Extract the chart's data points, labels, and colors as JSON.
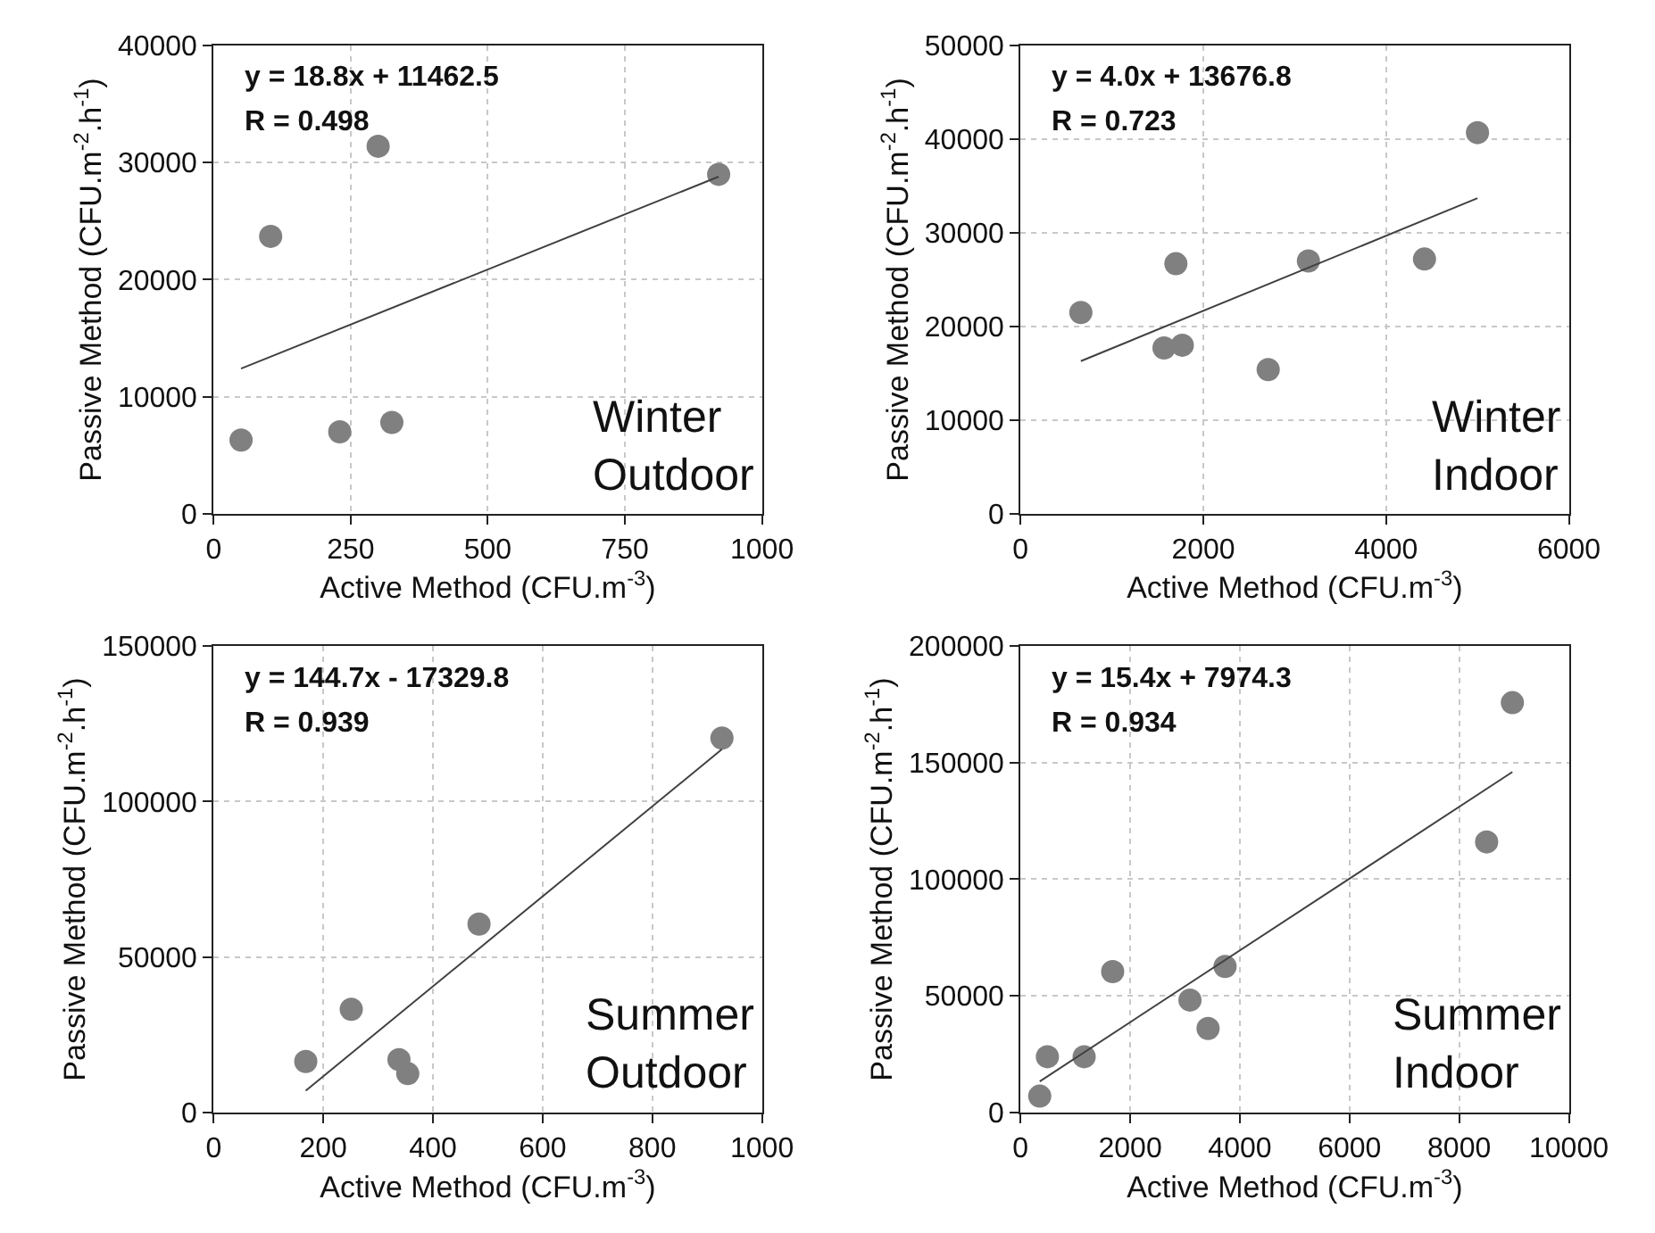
{
  "chart_data": [
    {
      "type": "scatter",
      "xlabel": "Active Method (CFU.m$^{-3}$)",
      "ylabel": "Passive Method (CFU.m$^{-2}$.h$^{-1}$)",
      "xlim": [
        0,
        1000
      ],
      "xticks": [
        0,
        250,
        500,
        750,
        1000
      ],
      "ylim": [
        0,
        40000
      ],
      "yticks": [
        0,
        10000,
        20000,
        30000,
        40000
      ],
      "grid": true,
      "annotations": [
        "y = 18.8x + 11462.5",
        "R = 0.498",
        "Winter\nOutdoor"
      ],
      "series": [
        {
          "marker": "circle",
          "color": "#808080",
          "x": [
            50,
            104,
            300,
            230,
            325,
            921
          ],
          "values": [
            6300,
            23700,
            31400,
            7000,
            7800,
            29000
          ]
        },
        {
          "type": "line",
          "marker": "none",
          "color": "#404040",
          "x": [
            50,
            921
          ],
          "values": [
            12400,
            28800
          ]
        }
      ]
    },
    {
      "type": "scatter",
      "xlabel": "Active Method (CFU.m$^{-3}$)",
      "ylabel": "Passive Method (CFU.m$^{-2}$.h$^{-1}$)",
      "xlim": [
        0,
        6000
      ],
      "xticks": [
        0,
        2000,
        4000,
        6000
      ],
      "ylim": [
        0,
        50000
      ],
      "yticks": [
        0,
        10000,
        20000,
        30000,
        40000,
        50000
      ],
      "grid": true,
      "annotations": [
        "y = 4.0x + 13676.8",
        "R = 0.723",
        "Winter\nIndoor"
      ],
      "series": [
        {
          "marker": "circle",
          "color": "#808080",
          "x": [
            660,
            1700,
            1570,
            1770,
            2710,
            3150,
            4420,
            5000
          ],
          "values": [
            21500,
            26700,
            17700,
            18000,
            15400,
            27000,
            27200,
            40700
          ]
        },
        {
          "type": "line",
          "marker": "none",
          "color": "#404040",
          "x": [
            660,
            5000
          ],
          "values": [
            16300,
            33700
          ]
        }
      ]
    },
    {
      "type": "scatter",
      "xlabel": "Active Method (CFU.m$^{-3}$)",
      "ylabel": "Passive Method (CFU.m$^{-2}$.h$^{-1}$)",
      "xlim": [
        0,
        1000
      ],
      "xticks": [
        0,
        200,
        400,
        600,
        800,
        1000
      ],
      "ylim": [
        0,
        150000
      ],
      "yticks": [
        0,
        50000,
        100000,
        150000
      ],
      "grid": true,
      "annotations": [
        "y = 144.7x - 17329.8",
        "R = 0.939",
        "Summer\nOutdoor"
      ],
      "series": [
        {
          "marker": "circle",
          "color": "#808080",
          "x": [
            168,
            251,
            338,
            354,
            484,
            927
          ],
          "values": [
            16400,
            33200,
            17000,
            12500,
            60600,
            120400
          ]
        },
        {
          "type": "line",
          "marker": "none",
          "color": "#404040",
          "x": [
            168,
            927
          ],
          "values": [
            7000,
            116800
          ]
        }
      ]
    },
    {
      "type": "scatter",
      "xlabel": "Active Method (CFU.m$^{-3}$)",
      "ylabel": "Passive Method (CFU.m$^{-2}$.h$^{-1}$)",
      "xlim": [
        0,
        10000
      ],
      "xticks": [
        0,
        2000,
        4000,
        6000,
        8000,
        10000
      ],
      "ylim": [
        0,
        200000
      ],
      "yticks": [
        0,
        50000,
        100000,
        150000,
        200000
      ],
      "grid": true,
      "annotations": [
        "y = 15.4x + 7974.3",
        "R = 0.934",
        "Summer\nIndoor"
      ],
      "series": [
        {
          "marker": "circle",
          "color": "#808080",
          "x": [
            350,
            490,
            1160,
            1680,
            3090,
            3420,
            3730,
            8500,
            8970
          ],
          "values": [
            7000,
            23900,
            23900,
            60400,
            48200,
            36000,
            62600,
            116000,
            175700
          ]
        },
        {
          "type": "line",
          "marker": "none",
          "color": "#404040",
          "x": [
            350,
            8970
          ],
          "values": [
            13300,
            146000
          ]
        }
      ]
    }
  ]
}
